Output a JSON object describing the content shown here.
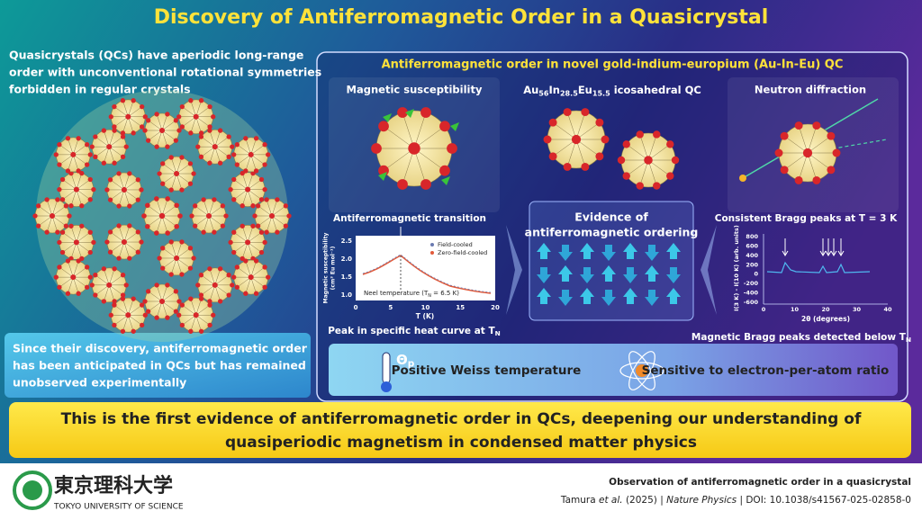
{
  "title": "Discovery of Antiferromagnetic Order in a Quasicrystal",
  "intro": [
    "Quasicrystals (QCs) have aperiodic long-range",
    "order with unconventional rotational symmetries",
    "forbidden in regular crystals"
  ],
  "history": [
    "Since their discovery, antiferromagnetic order",
    "has been anticipated in QCs but has remained",
    "unobserved experimentally"
  ],
  "panel": {
    "title": "Antiferromagnetic order in novel gold-indium-europium (Au-In-Eu) QC",
    "susceptibility": {
      "title": "Magnetic susceptibility",
      "annotation": "Antiferromagnetic transition",
      "y_label": [
        "Magnetic susceptibility",
        "(cm³ Eu mol⁻¹)"
      ],
      "x_label": "T (K)",
      "x_ticks": [
        "0",
        "5",
        "10",
        "15",
        "20"
      ],
      "y_ticks": [
        "1.0",
        "1.5",
        "2.0",
        "2.5"
      ],
      "legend": [
        "Field-cooled",
        "Zero-field-cooled"
      ],
      "neel": [
        "Neel temperature (T",
        "N",
        " = 6.5 K)"
      ],
      "caption": [
        "Peak in specific heat curve at T",
        "N"
      ]
    },
    "formula": [
      "Au",
      "56",
      "In",
      "28.5",
      "Eu",
      "15.5",
      " icosahedral QC"
    ],
    "evidence": [
      "Evidence of",
      "antiferromagnetic ordering"
    ],
    "neutron": {
      "title": "Neutron diffraction",
      "annotation": "Consistent Bragg peaks at T = 3 K",
      "y_label": "I(3 K) - I(10 K) (arb. units)",
      "x_label": "2θ (degrees)",
      "x_ticks": [
        "0",
        "10",
        "20",
        "30",
        "40"
      ],
      "y_ticks": [
        "800",
        "600",
        "400",
        "200",
        "0",
        "-200",
        "-400",
        "-600"
      ],
      "caption": [
        "Magnetic Bragg peaks detected below T",
        "N"
      ]
    },
    "weiss_symbol": [
      "Θ",
      "p"
    ],
    "features": [
      "Positive Weiss temperature",
      "Sensitive to electron-per-atom ratio"
    ]
  },
  "conclusion": [
    "This is the first evidence of antiferromagnetic order in QCs, deepening our understanding of",
    "quasiperiodic magnetism in condensed matter physics"
  ],
  "footer": {
    "logo_text": "東京理科大学",
    "university": "TOKYO UNIVERSITY OF SCIENCE",
    "article": "Observation of antiferromagnetic order in a quasicrystal",
    "citation": [
      "Tamura",
      "et al.",
      "(2025)",
      "|",
      "Nature Physics",
      "|",
      "DOI: 10.1038/s41567-025-02858-0"
    ]
  }
}
